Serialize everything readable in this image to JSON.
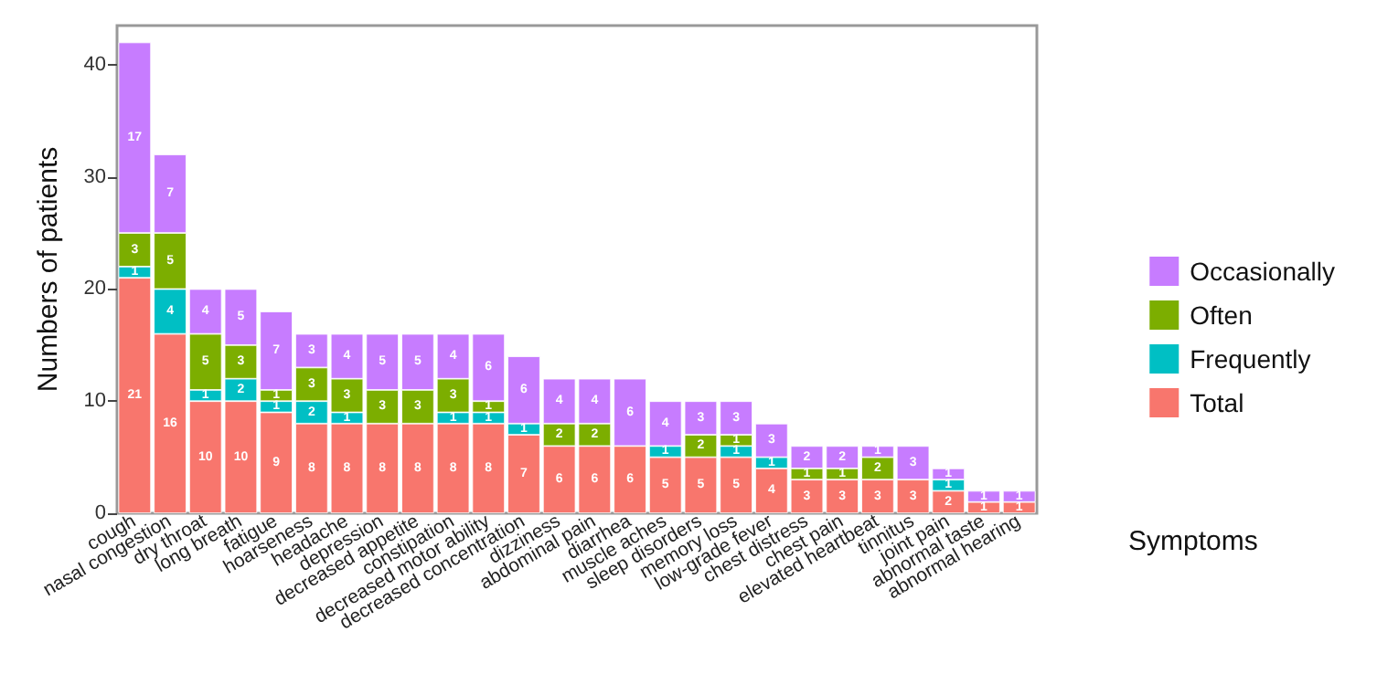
{
  "chart_data": {
    "type": "bar",
    "stacked": true,
    "xlabel": "Symptoms",
    "ylabel": "Numbers of patients",
    "categories": [
      "cough",
      "nasal congestion",
      "dry throat",
      "long breath",
      "fatigue",
      "hoarseness",
      "headache",
      "depression",
      "decreased appetite",
      "constipation",
      "decreased motor ability",
      "decreased concentration",
      "dizziness",
      "abdominal pain",
      "diarrhea",
      "muscle aches",
      "sleep disorders",
      "memory loss",
      "low-grade fever",
      "chest distress",
      "chest pain",
      "elevated heartbeat",
      "tinnitus",
      "joint pain",
      "abnormal taste",
      "abnormal hearing"
    ],
    "series": [
      {
        "name": "Total",
        "color": "#f8766d",
        "values": [
          21,
          16,
          10,
          10,
          9,
          8,
          8,
          8,
          8,
          8,
          8,
          7,
          6,
          6,
          6,
          5,
          5,
          5,
          4,
          3,
          3,
          3,
          3,
          2,
          1,
          1
        ]
      },
      {
        "name": "Frequently",
        "color": "#00bfc4",
        "values": [
          1,
          4,
          1,
          2,
          1,
          2,
          1,
          null,
          null,
          1,
          1,
          1,
          null,
          null,
          null,
          1,
          null,
          1,
          1,
          null,
          null,
          null,
          null,
          1,
          null,
          null
        ]
      },
      {
        "name": "Often",
        "color": "#7cae00",
        "values": [
          3,
          5,
          5,
          3,
          1,
          3,
          3,
          3,
          3,
          3,
          1,
          null,
          2,
          2,
          null,
          null,
          2,
          1,
          null,
          1,
          1,
          2,
          null,
          null,
          null,
          null
        ]
      },
      {
        "name": "Occasionally",
        "color": "#c77cff",
        "values": [
          17,
          7,
          4,
          5,
          7,
          3,
          4,
          5,
          5,
          4,
          6,
          6,
          4,
          4,
          6,
          4,
          3,
          3,
          3,
          2,
          2,
          1,
          3,
          1,
          1,
          1
        ]
      }
    ],
    "ylim": [
      0,
      43.5
    ],
    "yticks": [
      0,
      10,
      20,
      30,
      40
    ],
    "grid": false,
    "legend": "right",
    "data_labels": true
  }
}
